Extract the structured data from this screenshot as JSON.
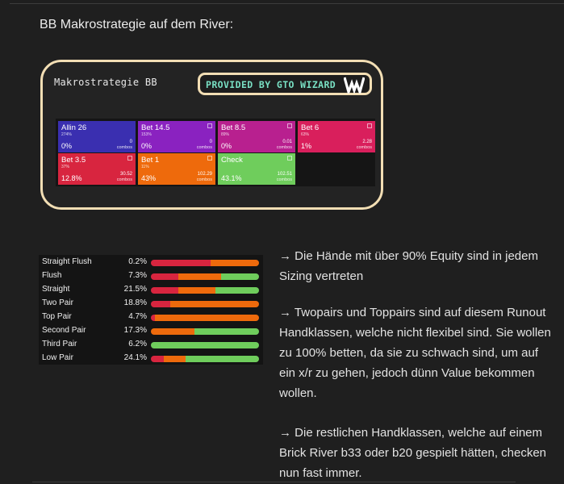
{
  "heading": "BB Makrostrategie auf dem River:",
  "card": {
    "title": "Makrostrategie BB",
    "badge_text": "PROVIDED BY GTO WIZARD",
    "logo": "gto-wizard-w-logo"
  },
  "actions": [
    {
      "label": "Allin 26",
      "sub": "274%",
      "pct": "0%",
      "combos": "0",
      "combos_label": "combos",
      "color": "#3a2fb0",
      "icon": false
    },
    {
      "label": "Bet 14.5",
      "sub": "153%",
      "pct": "0%",
      "combos": "0",
      "combos_label": "combos",
      "color": "#8a22c0",
      "icon": true
    },
    {
      "label": "Bet 8.5",
      "sub": "89%",
      "pct": "0%",
      "combos": "0.01",
      "combos_label": "combos",
      "color": "#b8208f",
      "icon": true
    },
    {
      "label": "Bet 6",
      "sub": "63%",
      "pct": "1%",
      "combos": "2.28",
      "combos_label": "combos",
      "color": "#d91f5c",
      "icon": true
    },
    {
      "label": "Bet 3.5",
      "sub": "37%",
      "pct": "12.8%",
      "combos": "30.52",
      "combos_label": "combos",
      "color": "#d8253f",
      "icon": true
    },
    {
      "label": "Bet 1",
      "sub": "11%",
      "pct": "43%",
      "combos": "102.29",
      "combos_label": "combos",
      "color": "#ee6a0c",
      "icon": true
    },
    {
      "label": "Check",
      "sub": "",
      "pct": "43.1%",
      "combos": "102.51",
      "combos_label": "combos",
      "color": "#6fcd5c",
      "icon": true
    }
  ],
  "hand_classes": [
    {
      "name": "Straight Flush",
      "pct": "0.2%",
      "segments": [
        {
          "color": "#d8253f",
          "share": 55
        },
        {
          "color": "#ee6a0c",
          "share": 45
        }
      ]
    },
    {
      "name": "Flush",
      "pct": "7.3%",
      "segments": [
        {
          "color": "#d8253f",
          "share": 25
        },
        {
          "color": "#ee6a0c",
          "share": 40
        },
        {
          "color": "#6fcd5c",
          "share": 35
        }
      ]
    },
    {
      "name": "Straight",
      "pct": "21.5%",
      "segments": [
        {
          "color": "#d8253f",
          "share": 25
        },
        {
          "color": "#ee6a0c",
          "share": 35
        },
        {
          "color": "#6fcd5c",
          "share": 40
        }
      ]
    },
    {
      "name": "Two Pair",
      "pct": "18.8%",
      "segments": [
        {
          "color": "#d8253f",
          "share": 18
        },
        {
          "color": "#ee6a0c",
          "share": 82
        }
      ]
    },
    {
      "name": "Top Pair",
      "pct": "4.7%",
      "segments": [
        {
          "color": "#d8253f",
          "share": 4
        },
        {
          "color": "#ee6a0c",
          "share": 96
        }
      ]
    },
    {
      "name": "Second Pair",
      "pct": "17.3%",
      "segments": [
        {
          "color": "#ee6a0c",
          "share": 40
        },
        {
          "color": "#6fcd5c",
          "share": 60
        }
      ]
    },
    {
      "name": "Third Pair",
      "pct": "6.2%",
      "segments": [
        {
          "color": "#6fcd5c",
          "share": 100
        }
      ]
    },
    {
      "name": "Low Pair",
      "pct": "24.1%",
      "segments": [
        {
          "color": "#d8253f",
          "share": 12
        },
        {
          "color": "#ee6a0c",
          "share": 20
        },
        {
          "color": "#6fcd5c",
          "share": 68
        }
      ]
    }
  ],
  "paragraphs": [
    "→ Die Hände mit über 90% Equity sind in jedem Sizing vertreten",
    "→ Twopairs und Toppairs sind auf diesem Runout Handklassen, welche nicht flexibel sind. Sie wollen zu 100% betten, da sie zu schwach sind, um auf ein x/r zu gehen, jedoch dünn Value bekommen wollen.",
    "→ Die restlichen Handklassen, welche auf einem Brick River b33 oder b20 gespielt hätten, checken nun fast immer."
  ]
}
